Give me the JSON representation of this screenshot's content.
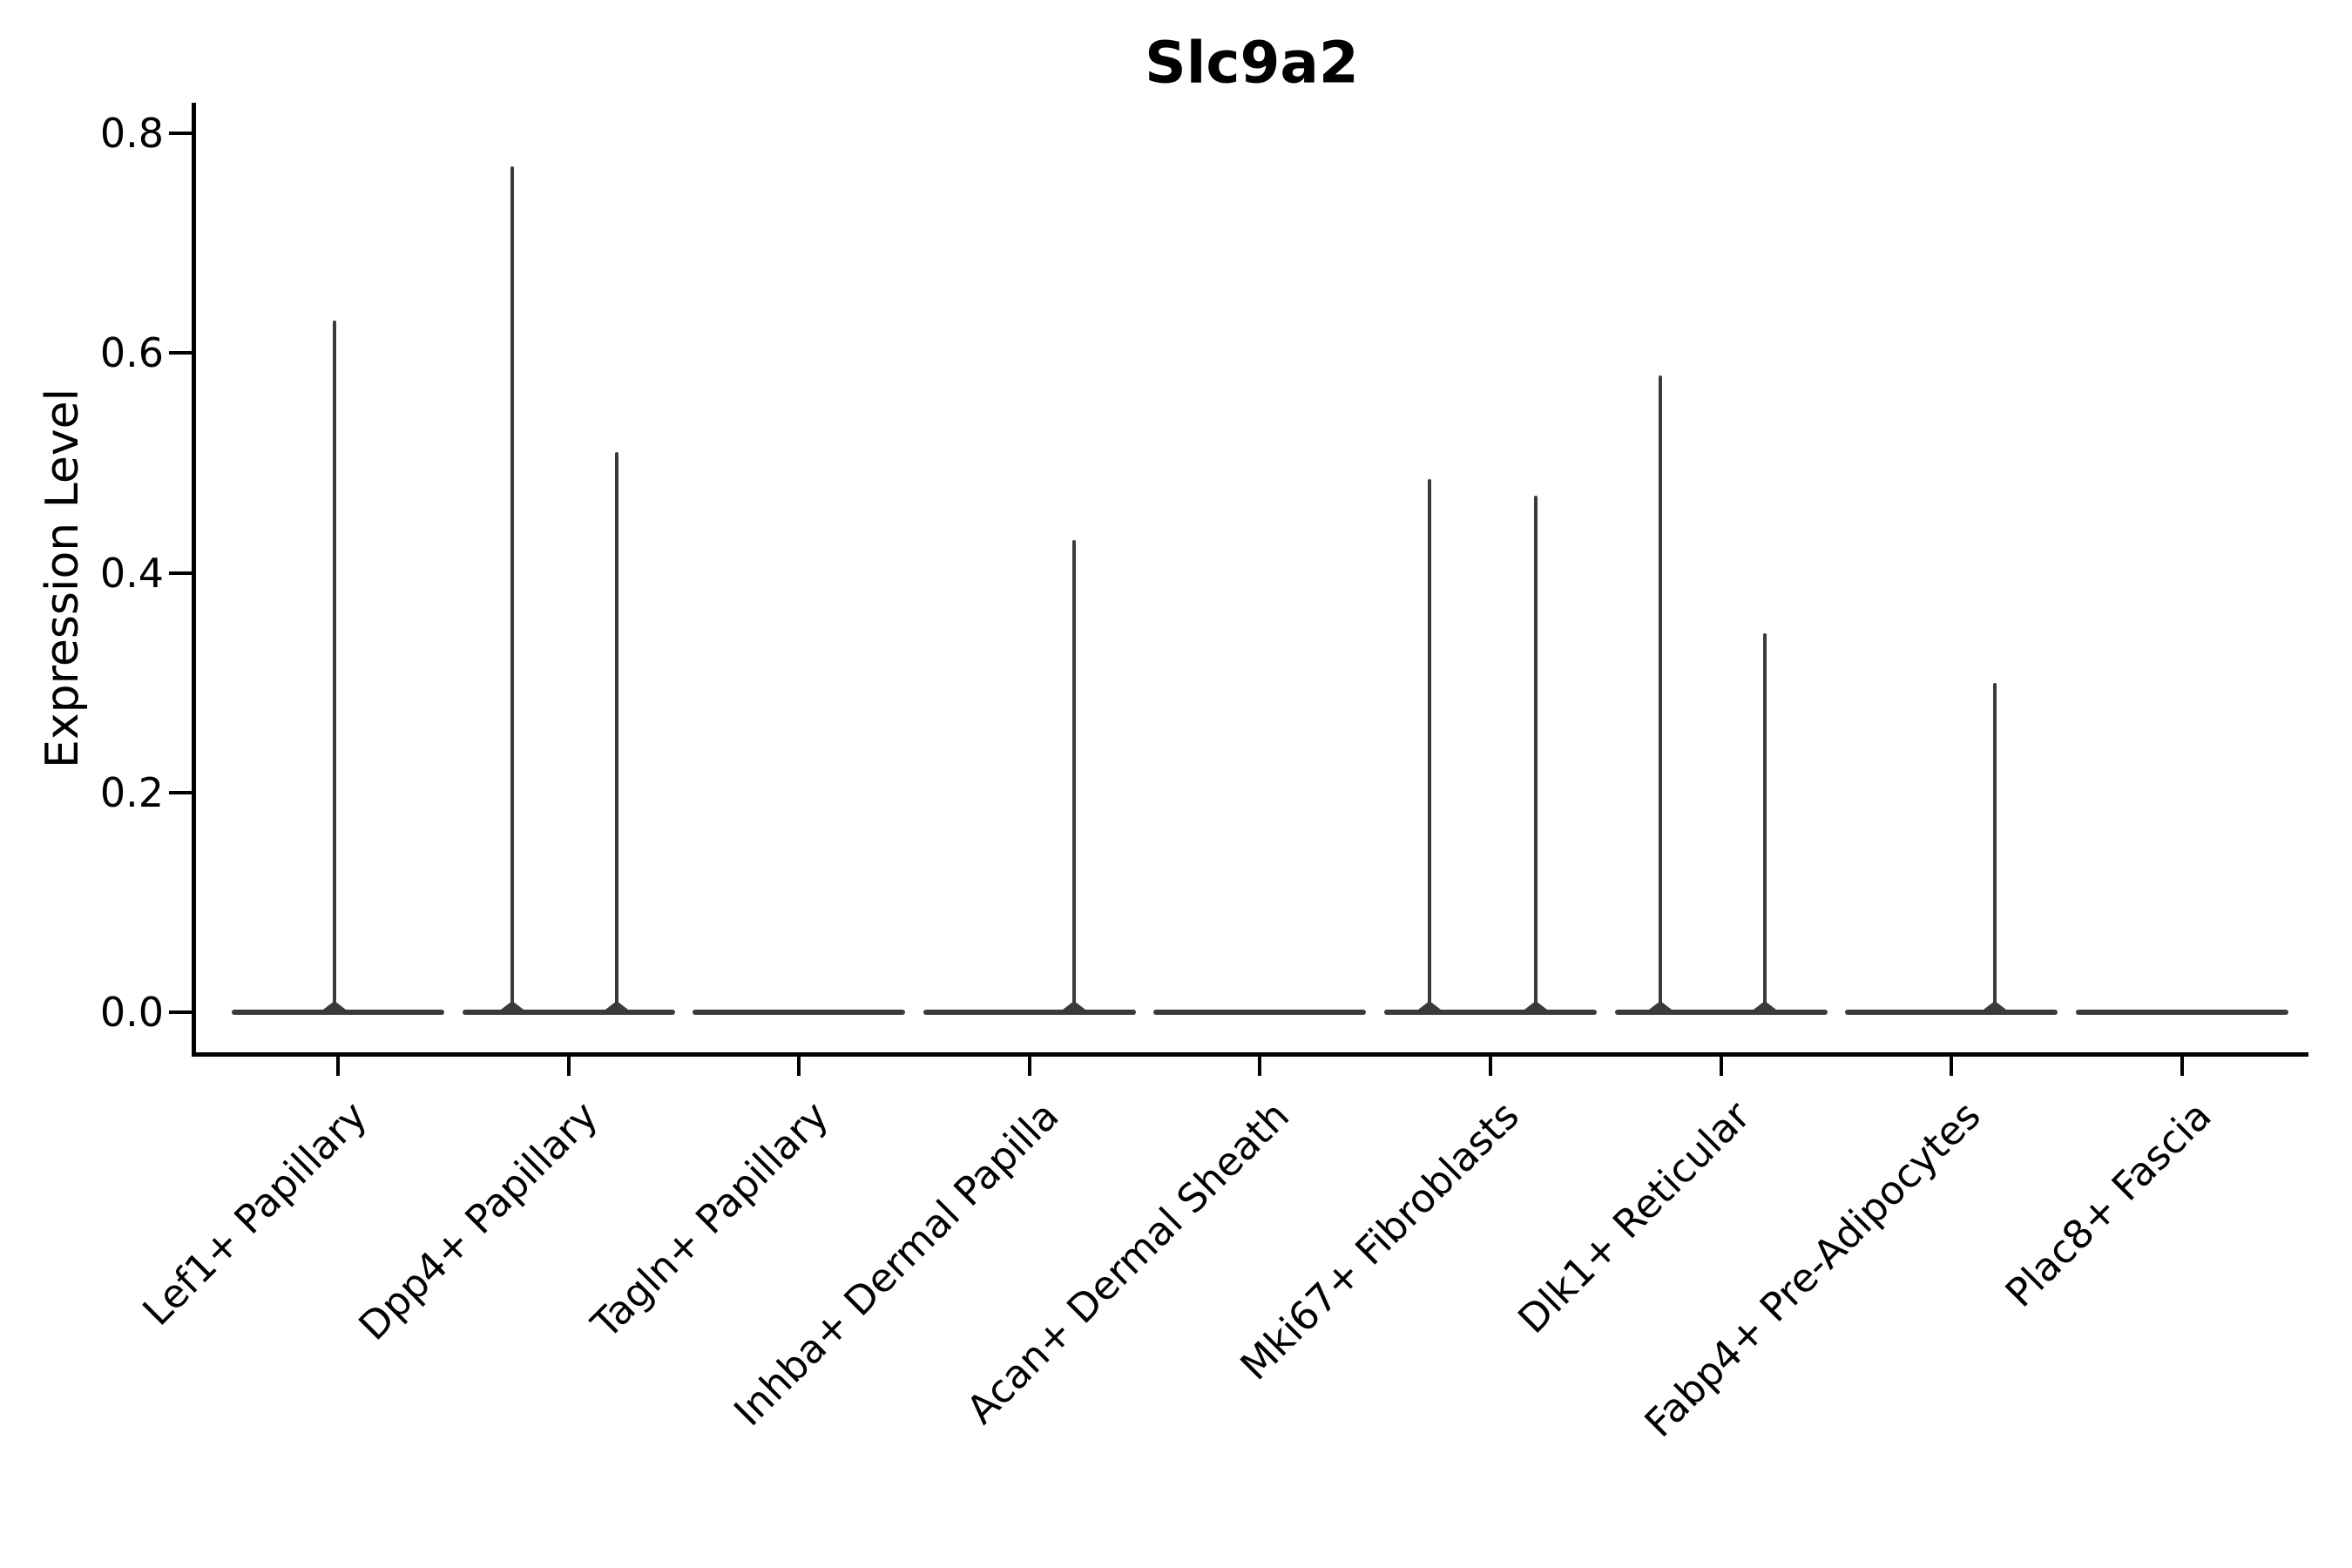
{
  "chart_data": {
    "type": "violin",
    "title": "Slc9a2",
    "xlabel": "",
    "ylabel": "Expression Level",
    "yticks": [
      "0.0",
      "0.2",
      "0.4",
      "0.6",
      "0.8"
    ],
    "ytick_values": [
      0.0,
      0.2,
      0.4,
      0.6,
      0.8
    ],
    "ylim": [
      -0.037,
      0.832
    ],
    "grid": false,
    "legend": "none",
    "line_color": "#3a3a3a",
    "axis_color": "#000000",
    "categories": [
      "Lef1+ Papillary",
      "Dpp4+ Papillary",
      "Tagln+ Papillary",
      "Inhba+ Dermal Papilla",
      "Acan+ Dermal Sheath",
      "Mki67+ Fibroblasts",
      "Dlk1+ Reticular",
      "Fabp4+ Pre-Adipocytes",
      "Plac8+ Fascia"
    ],
    "violins": [
      {
        "category": "Lef1+ Papillary",
        "baseline_value": 0.0,
        "spikes": [
          {
            "dx": -0.03,
            "value": 0.63
          }
        ]
      },
      {
        "category": "Dpp4+ Papillary",
        "baseline_value": 0.0,
        "spikes": [
          {
            "dx": -0.53,
            "value": 0.77
          },
          {
            "dx": 0.45,
            "value": 0.51
          }
        ]
      },
      {
        "category": "Tagln+ Papillary",
        "baseline_value": 0.0,
        "spikes": []
      },
      {
        "category": "Inhba+ Dermal Papilla",
        "baseline_value": 0.0,
        "spikes": [
          {
            "dx": 0.42,
            "value": 0.43
          }
        ]
      },
      {
        "category": "Acan+ Dermal Sheath",
        "baseline_value": 0.0,
        "spikes": []
      },
      {
        "category": "Mki67+ Fibroblasts",
        "baseline_value": 0.0,
        "spikes": [
          {
            "dx": -0.57,
            "value": 0.485
          },
          {
            "dx": 0.43,
            "value": 0.47
          }
        ]
      },
      {
        "category": "Dlk1+ Reticular",
        "baseline_value": 0.0,
        "spikes": [
          {
            "dx": -0.57,
            "value": 0.58
          },
          {
            "dx": 0.41,
            "value": 0.345
          }
        ]
      },
      {
        "category": "Fabp4+ Pre-Adipocytes",
        "baseline_value": 0.0,
        "spikes": [
          {
            "dx": 0.41,
            "value": 0.3
          }
        ]
      },
      {
        "category": "Plac8+ Fascia",
        "baseline_value": 0.0,
        "spikes": []
      }
    ]
  }
}
